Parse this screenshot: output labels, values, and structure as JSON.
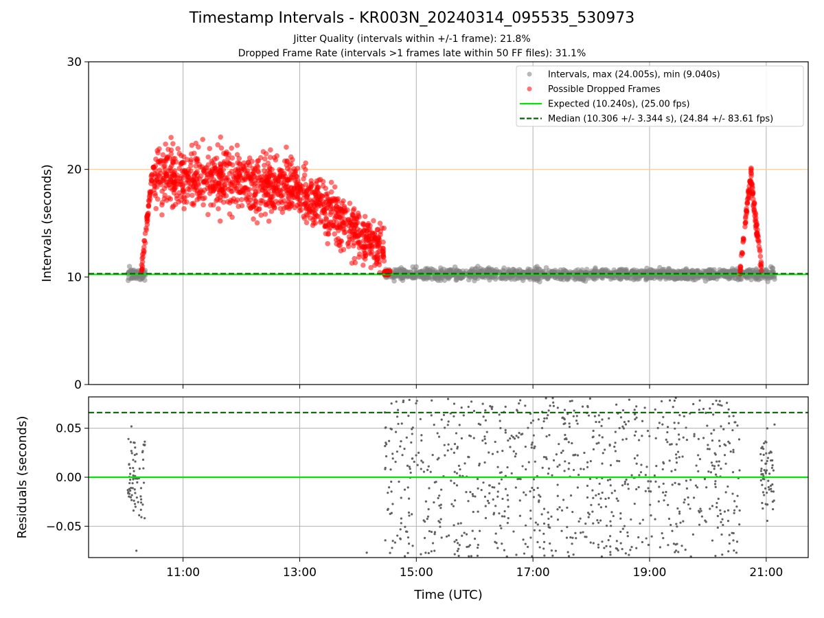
{
  "figure": {
    "title": "Timestamp Intervals - KR003N_20240314_095535_530973",
    "subtitle_1": "Jitter Quality (intervals within +/-1 frame): 21.8%",
    "subtitle_2": "Dropped Frame Rate (intervals >1 frames late within 50 FF files): 31.1%",
    "xlabel": "Time (UTC)"
  },
  "chart_data": [
    {
      "type": "scatter",
      "panel": "intervals",
      "ylabel": "Intervals (seconds)",
      "ylim": [
        0,
        30
      ],
      "yticks": [
        0,
        10,
        20,
        30
      ],
      "x_unit": "hours UTC",
      "xlim": [
        9.38,
        21.72
      ],
      "xticks": [
        11,
        13,
        15,
        17,
        19,
        21
      ],
      "xtick_labels": [
        "11:00",
        "13:00",
        "15:00",
        "17:00",
        "19:00",
        "21:00"
      ],
      "grid": "vertical at x ticks",
      "legend_placement": "top-right",
      "reference_lines": [
        {
          "name": "Expected (10.240s), (25.00 fps)",
          "y": 10.24,
          "color": "#00e600",
          "style": "solid"
        },
        {
          "name": "Median (10.306 +/- 3.344 s), (24.84 +/- 83.61 fps)",
          "y": 10.306,
          "color": "#006400",
          "style": "dashed"
        },
        {
          "name": "",
          "y": 20.0,
          "color": "#ffcc80",
          "style": "solid"
        }
      ],
      "series": [
        {
          "name": "Intervals, max (24.005s), min (9.040s)",
          "color": "#808080",
          "max": 24.005,
          "min": 9.04,
          "clusters": [
            {
              "x_range": [
                10.05,
                10.35
              ],
              "y_center": 10.25,
              "y_spread": 0.55,
              "approx_count": 70
            },
            {
              "x_range": [
                14.45,
                21.15
              ],
              "y_center": 10.25,
              "y_spread": 0.55,
              "approx_count": 1400
            }
          ]
        },
        {
          "name": "Possible Dropped Frames",
          "color": "#ff0000",
          "segments": [
            {
              "x_range": [
                10.28,
                10.5
              ],
              "y_start": 10.3,
              "y_end": 21.0
            },
            {
              "x_range": [
                10.5,
                12.8
              ],
              "y_center_start": 19.5,
              "y_center_end": 18.5,
              "y_spread": 2.8
            },
            {
              "x_range": [
                12.8,
                14.45
              ],
              "y_center_start": 18.5,
              "y_center_end": 12.5,
              "y_spread": 2.5
            },
            {
              "x_range": [
                14.45,
                14.55
              ],
              "y_center": 10.4,
              "y_spread": 0.4
            },
            {
              "x_range": [
                20.55,
                20.75
              ],
              "y_start": 10.4,
              "y_end": 20.2
            },
            {
              "x_range": [
                20.75,
                20.92
              ],
              "y_start": 18.5,
              "y_end": 10.5
            }
          ]
        }
      ],
      "legend": [
        "Intervals, max (24.005s), min (9.040s)",
        "Possible Dropped Frames",
        "Expected (10.240s), (25.00 fps)",
        "Median (10.306 +/- 3.344 s), (24.84 +/- 83.61 fps)"
      ]
    },
    {
      "type": "scatter",
      "panel": "residuals",
      "ylabel": "Residuals (seconds)",
      "ylim": [
        -0.082,
        0.082
      ],
      "yticks": [
        -0.05,
        0.0,
        0.05
      ],
      "ytick_labels": [
        "−0.05",
        "0.00",
        "0.05"
      ],
      "grid": "both at ticks",
      "reference_lines": [
        {
          "y": 0.0,
          "color": "#00e600",
          "style": "solid"
        },
        {
          "y": 0.066,
          "color": "#006400",
          "style": "dashed"
        }
      ],
      "series": [
        {
          "color": "#606060",
          "clusters": [
            {
              "x_range": [
                10.05,
                10.35
              ],
              "y_center": 0.0,
              "y_spread": 0.045,
              "approx_count": 70
            },
            {
              "x_range": [
                14.45,
                20.55
              ],
              "y_center": 0.0,
              "y_spread": 0.085,
              "approx_count": 900
            },
            {
              "x_range": [
                20.9,
                21.15
              ],
              "y_center": 0.0,
              "y_spread": 0.045,
              "approx_count": 60
            }
          ],
          "outliers": [
            [
              10.2,
              -0.075
            ],
            [
              14.15,
              -0.077
            ]
          ]
        }
      ]
    }
  ]
}
